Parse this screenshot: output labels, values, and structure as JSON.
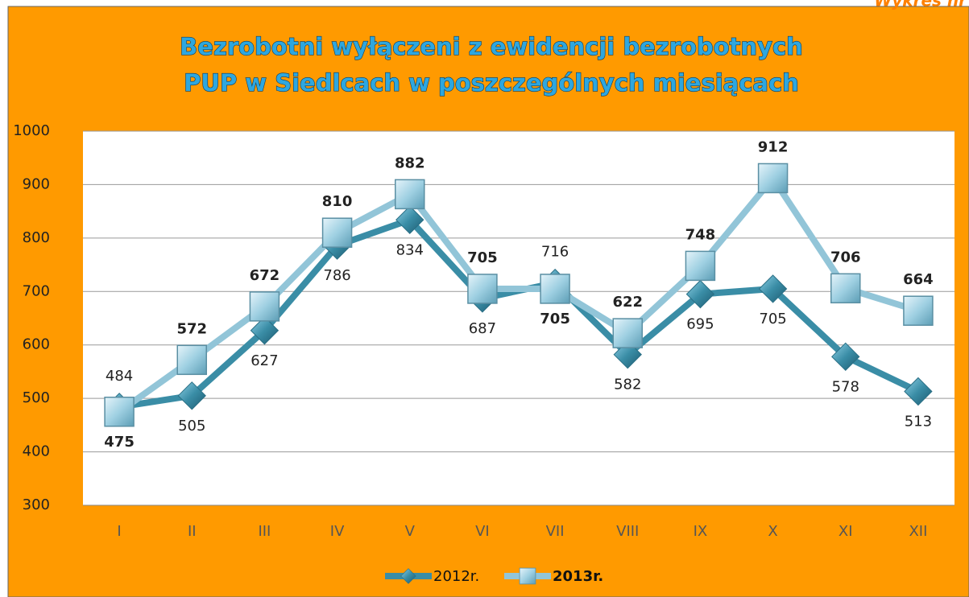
{
  "chart_data": {
    "type": "line",
    "title": [
      "Bezrobotni wyłączeni z ewidencji bezrobotnych",
      "PUP w Siedlcach w poszczególnych miesiącach"
    ],
    "annotation": "Wykres nr",
    "categories": [
      "I",
      "II",
      "III",
      "IV",
      "V",
      "VI",
      "VII",
      "VIII",
      "IX",
      "X",
      "XI",
      "XII"
    ],
    "series": [
      {
        "name": "2012r.",
        "color": "#3a8da6",
        "values": [
          484,
          505,
          627,
          786,
          834,
          687,
          716,
          582,
          695,
          705,
          578,
          513
        ]
      },
      {
        "name": "2013r.",
        "color": "#92c5d8",
        "values": [
          475,
          572,
          672,
          810,
          882,
          705,
          705,
          622,
          748,
          912,
          706,
          664
        ]
      }
    ],
    "ylim": [
      300,
      1000
    ],
    "yticks": [
      300,
      400,
      500,
      600,
      700,
      800,
      900,
      1000
    ],
    "grid": true,
    "legend": "bottom"
  }
}
